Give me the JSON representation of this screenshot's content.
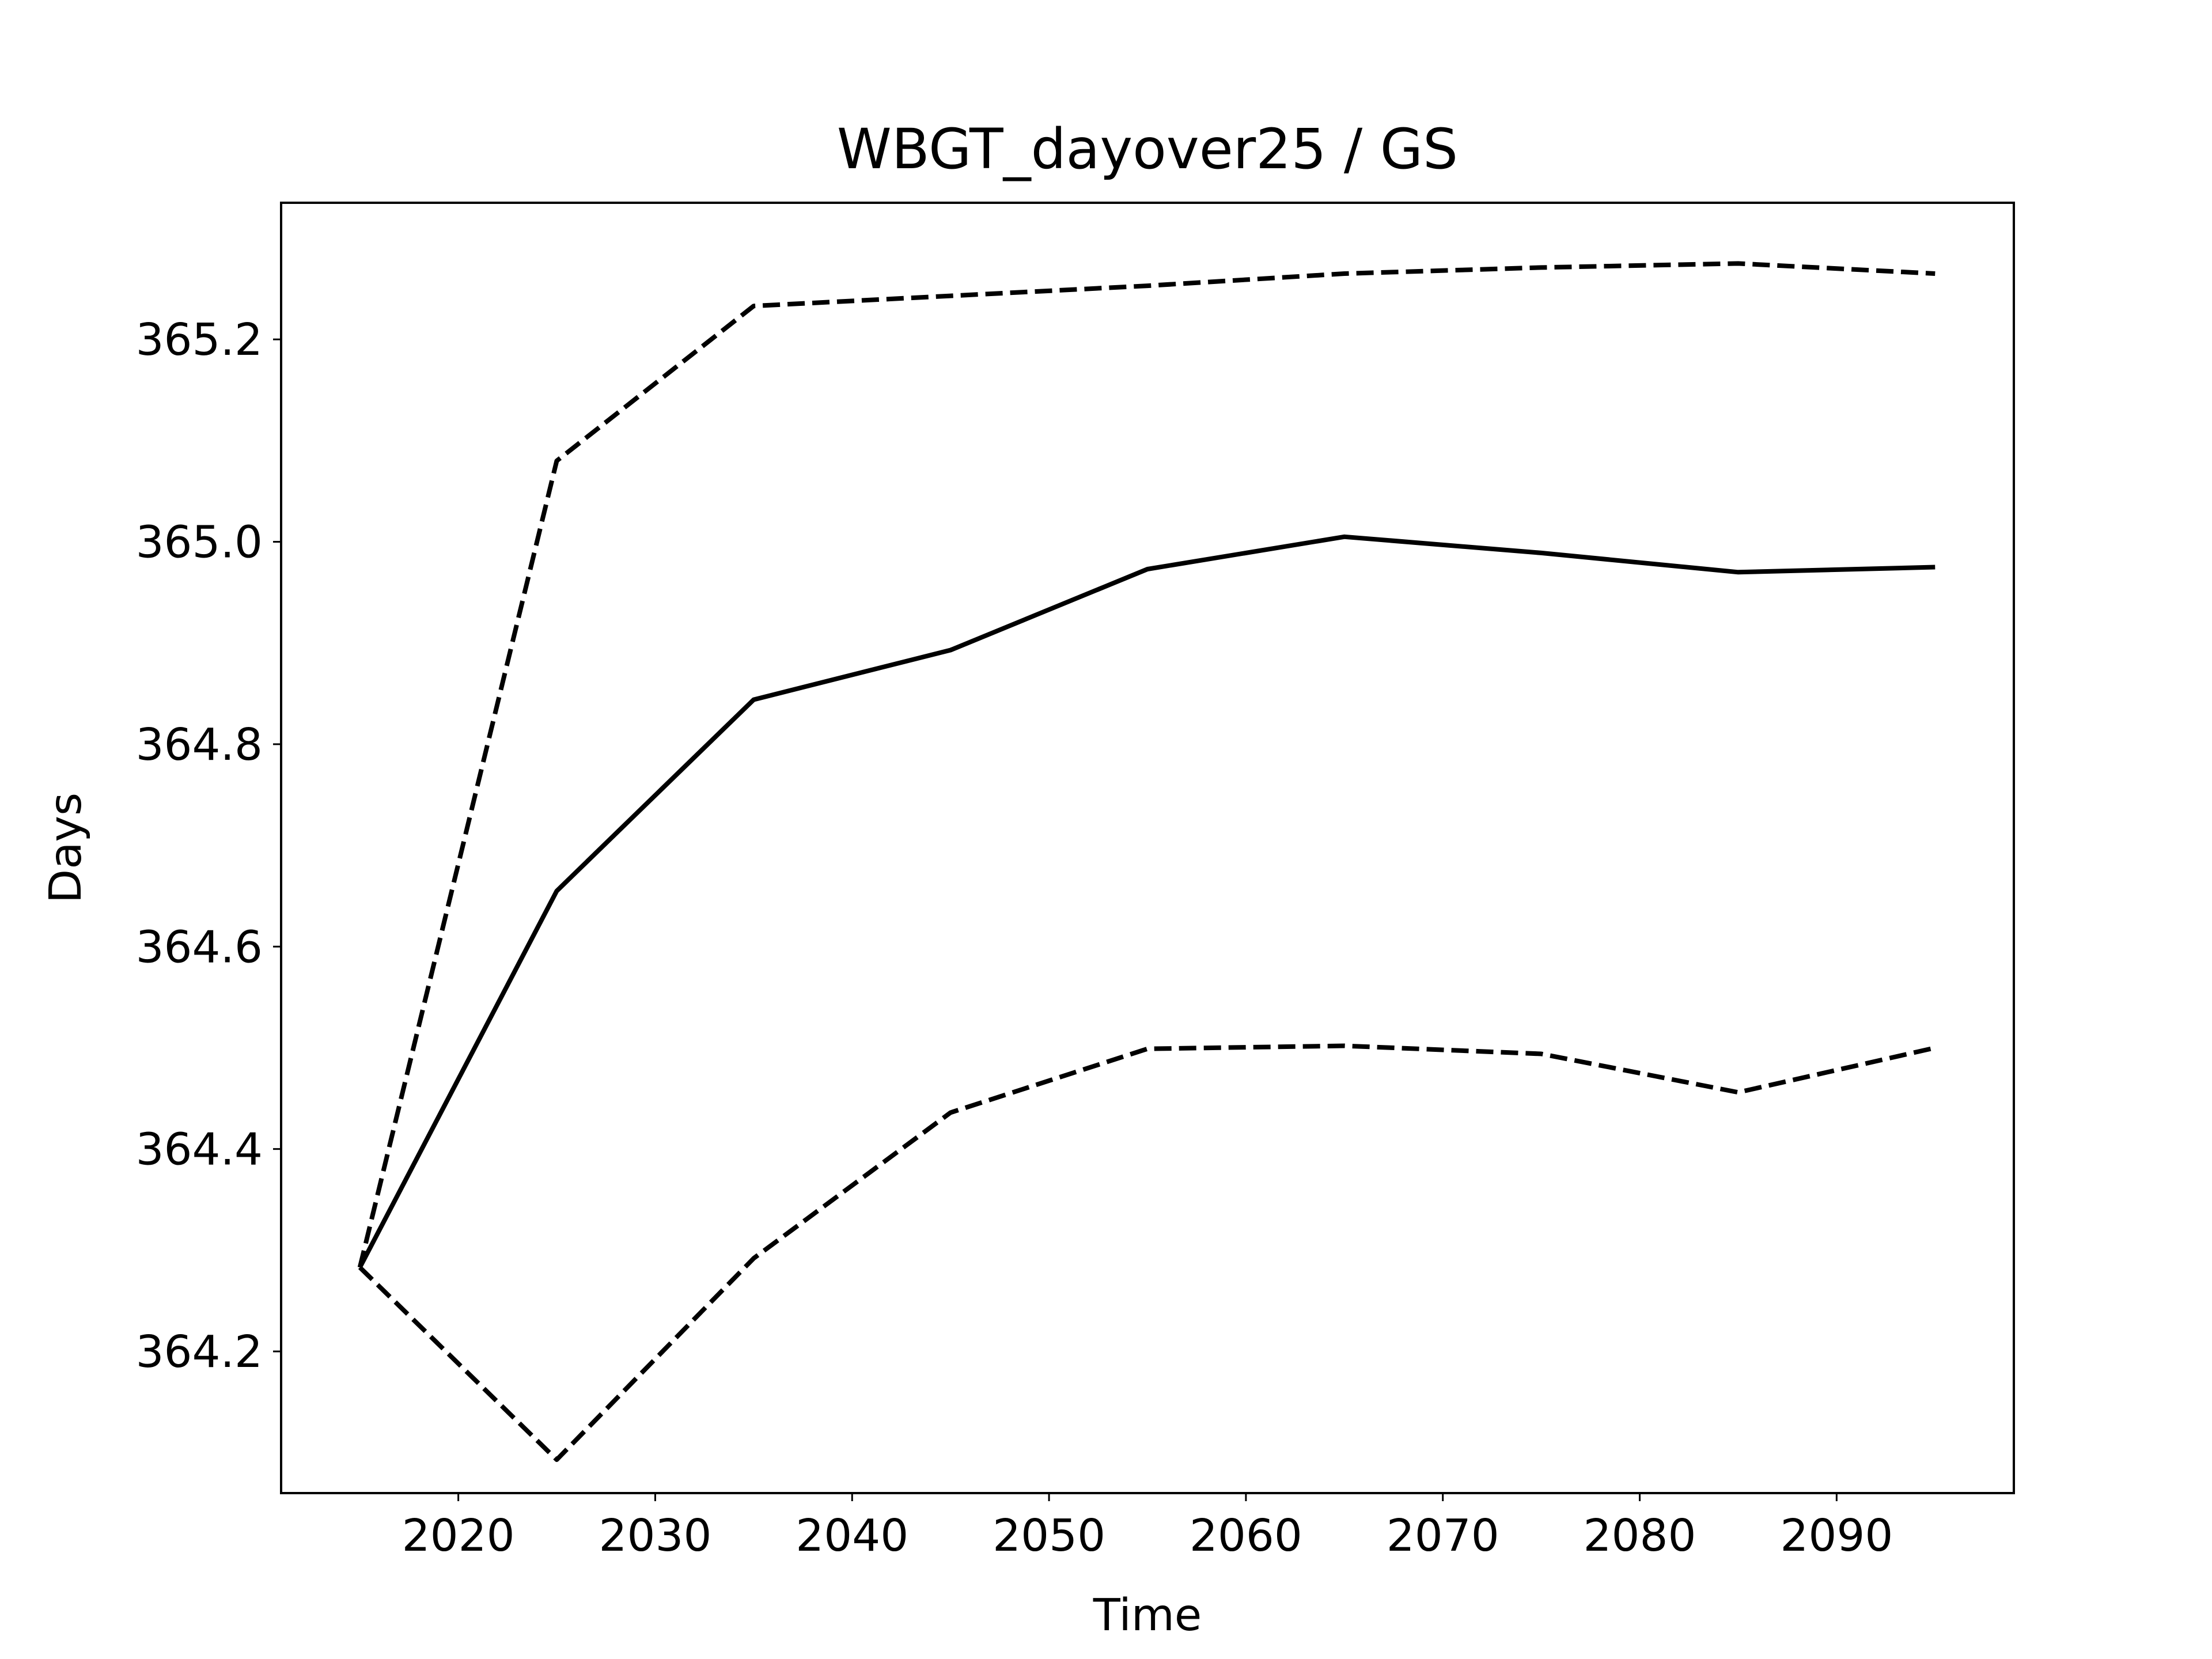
{
  "chart_data": {
    "type": "line",
    "title": "WBGT_dayover25 / GS",
    "xlabel": "Time",
    "ylabel": "Days",
    "xlim": [
      2011,
      2099
    ],
    "ylim": [
      364.06,
      365.335
    ],
    "xticks": [
      2020,
      2030,
      2040,
      2050,
      2060,
      2070,
      2080,
      2090
    ],
    "yticks": [
      364.2,
      364.4,
      364.6,
      364.8,
      365.0,
      365.2
    ],
    "grid": false,
    "x": [
      2015,
      2025,
      2035,
      2045,
      2055,
      2065,
      2075,
      2085,
      2095
    ],
    "series": [
      {
        "style": "solid",
        "color": "#000000",
        "values": [
          364.283,
          364.655,
          364.844,
          364.893,
          364.973,
          365.005,
          364.989,
          364.97,
          364.975
        ]
      },
      {
        "style": "dashed",
        "color": "#000000",
        "values": [
          364.283,
          365.08,
          365.233,
          365.243,
          365.253,
          365.265,
          365.271,
          365.275,
          365.265
        ]
      },
      {
        "style": "dashed",
        "color": "#000000",
        "values": [
          364.283,
          364.093,
          364.292,
          364.436,
          364.499,
          364.502,
          364.494,
          364.456,
          364.5
        ]
      }
    ]
  }
}
